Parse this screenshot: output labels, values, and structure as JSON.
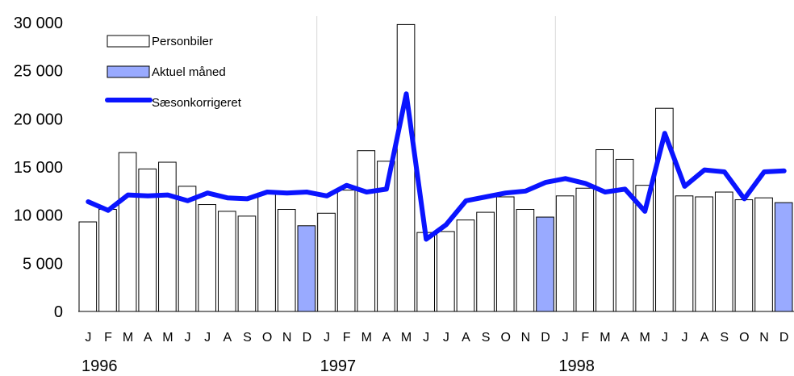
{
  "chart_data": {
    "type": "bar",
    "title": "",
    "xlabel": "",
    "ylabel": "",
    "ylim": [
      0,
      30000
    ],
    "yticks": [
      "0",
      "5 000",
      "10 000",
      "15 000",
      "20 000",
      "25 000",
      "30 000"
    ],
    "ytick_values": [
      0,
      5000,
      10000,
      15000,
      20000,
      25000,
      30000
    ],
    "grid": "vertical lines at year boundaries",
    "legend_position": "top-left",
    "categories": [
      "J",
      "F",
      "M",
      "A",
      "M",
      "J",
      "J",
      "A",
      "S",
      "O",
      "N",
      "D",
      "J",
      "F",
      "M",
      "A",
      "M",
      "J",
      "J",
      "A",
      "S",
      "O",
      "N",
      "D",
      "J",
      "F",
      "M",
      "A",
      "M",
      "J",
      "J",
      "A",
      "S",
      "O",
      "N",
      "D"
    ],
    "years": [
      "1996",
      "1997",
      "1998"
    ],
    "legend": {
      "bars": "Personbiler",
      "current": "Aktuel måned",
      "line": "Sæsonkorrigeret"
    },
    "colors": {
      "bar_fill": "#ffffff",
      "bar_stroke": "#000000",
      "current_fill": "#99aaff",
      "line": "#0a14ff",
      "grid": "#d9d9d9"
    },
    "series": [
      {
        "name": "Personbiler",
        "type": "bar",
        "values": [
          9300,
          10600,
          16500,
          14800,
          15500,
          13000,
          11100,
          10400,
          9900,
          12300,
          10600,
          8900,
          10200,
          12600,
          16700,
          15600,
          29800,
          8200,
          8300,
          9500,
          10300,
          11900,
          10600,
          9800,
          12000,
          12800,
          16800,
          15800,
          13100,
          21100,
          12000,
          11900,
          12400,
          11600,
          11800,
          11300
        ],
        "highlighted_indices": [
          11,
          23,
          35
        ]
      },
      {
        "name": "Sæsonkorrigeret",
        "type": "line",
        "values": [
          11400,
          10500,
          12100,
          12000,
          12100,
          11500,
          12300,
          11800,
          11700,
          12400,
          12300,
          12400,
          12000,
          13100,
          12400,
          12700,
          22600,
          7500,
          9000,
          11500,
          11900,
          12300,
          12500,
          13400,
          13800,
          13300,
          12400,
          12700,
          10400,
          18500,
          13000,
          14700,
          14500,
          11700,
          14500,
          14600
        ]
      }
    ]
  }
}
